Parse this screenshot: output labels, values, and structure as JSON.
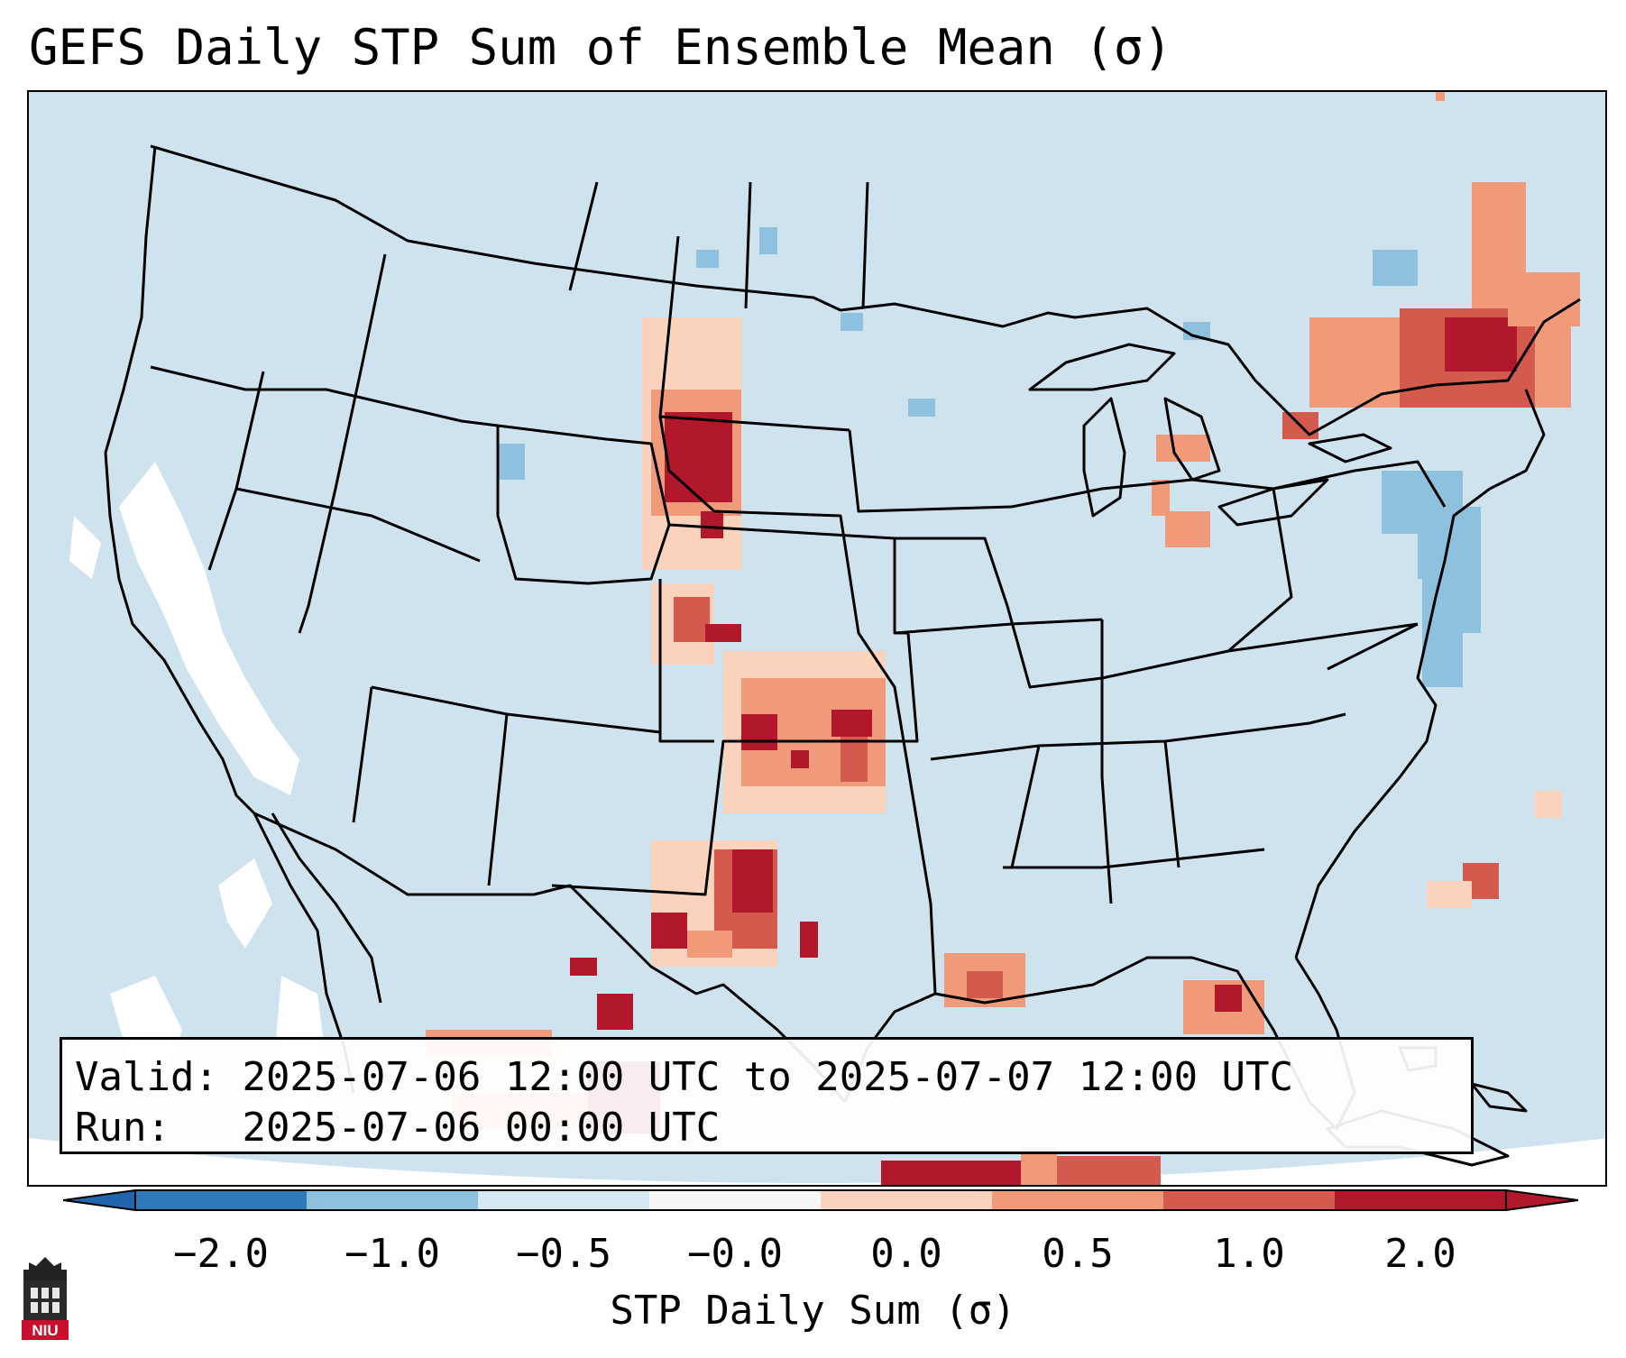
{
  "title": "GEFS Daily STP Sum of Ensemble Mean (σ)",
  "info": {
    "valid_label": "Valid:",
    "valid_value": "2025-07-06 12:00 UTC to 2025-07-07 12:00 UTC",
    "run_label": "Run:",
    "run_value": "2025-07-06 00:00 UTC"
  },
  "colorbar": {
    "label": "STP Daily Sum (σ)",
    "ticks": [
      "−2.0",
      "−1.0",
      "−0.5",
      "−0.0",
      "0.0",
      "0.5",
      "1.0",
      "2.0"
    ],
    "colors": [
      "#2f7ab8",
      "#8ec1de",
      "#d6e8f2",
      "#f6f6f6",
      "#fbd3bd",
      "#f09a7a",
      "#d35a4c",
      "#b1182b"
    ],
    "extend_low_color": "#2166ac",
    "extend_high_color": "#b2182b"
  },
  "map": {
    "background_color": "#cfe3ef",
    "boundary_color": "#000000"
  },
  "logo": {
    "text": "NIU"
  }
}
